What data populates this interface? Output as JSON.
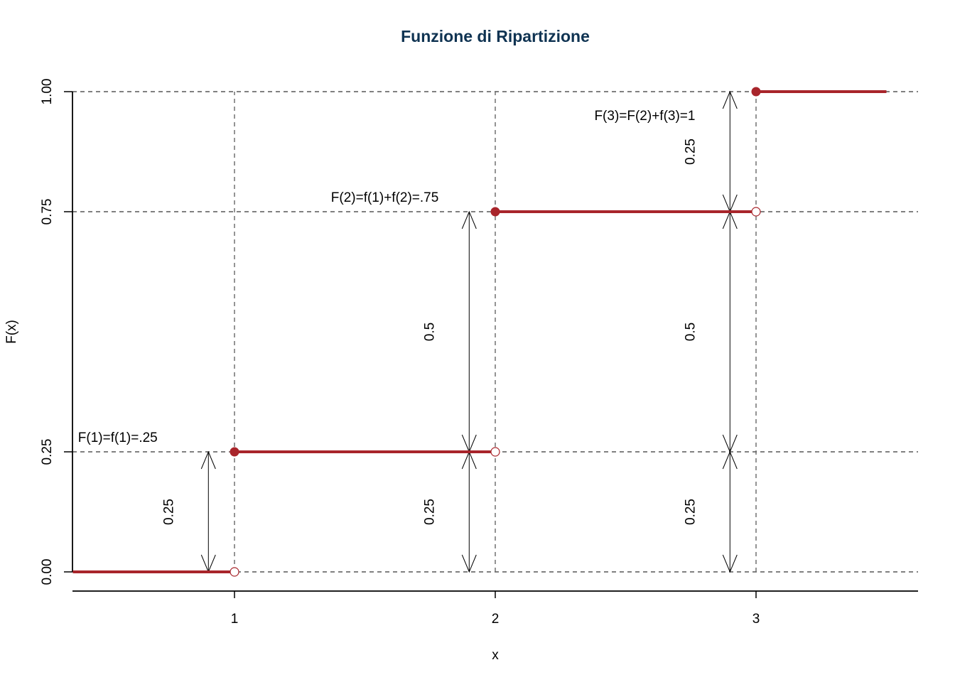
{
  "chart_data": {
    "type": "step",
    "title": "Funzione di Ripartizione",
    "xlabel": "x",
    "ylabel": "F(x)",
    "xlim": [
      0.38,
      3.62
    ],
    "ylim": [
      -0.08,
      1.0
    ],
    "x_ticks": [
      1,
      2,
      3
    ],
    "x_tick_labels": [
      "1",
      "2",
      "3"
    ],
    "y_ticks": [
      0,
      0.25,
      0.75,
      1
    ],
    "y_tick_labels": [
      "0.00",
      "0.25",
      "0.75",
      "1.00"
    ],
    "step_color": "#a8252b",
    "title_color": "#0f3352",
    "segments": [
      {
        "x_start": 0.38,
        "x_end": 1,
        "y": 0
      },
      {
        "x_start": 1,
        "x_end": 2,
        "y": 0.25
      },
      {
        "x_start": 2,
        "x_end": 3,
        "y": 0.75
      },
      {
        "x_start": 3,
        "x_end": 3.5,
        "y": 1
      }
    ],
    "closed_points": [
      {
        "x": 1,
        "y": 0.25
      },
      {
        "x": 2,
        "y": 0.75
      },
      {
        "x": 3,
        "y": 1
      }
    ],
    "open_points": [
      {
        "x": 1,
        "y": 0
      },
      {
        "x": 2,
        "y": 0.25
      },
      {
        "x": 3,
        "y": 0.75
      }
    ],
    "reference_lines_h": [
      0,
      0.25,
      0.75,
      1
    ],
    "reference_lines_v": [
      1,
      2,
      3
    ],
    "arrows": [
      {
        "x": 0.9,
        "y0": 0,
        "y1": 0.25,
        "label": "0.25"
      },
      {
        "x": 1.9,
        "y0": 0,
        "y1": 0.25,
        "label": "0.25"
      },
      {
        "x": 1.9,
        "y0": 0.25,
        "y1": 0.75,
        "label": "0.5"
      },
      {
        "x": 2.9,
        "y0": 0,
        "y1": 0.25,
        "label": "0.25"
      },
      {
        "x": 2.9,
        "y0": 0.25,
        "y1": 0.75,
        "label": "0.5"
      },
      {
        "x": 2.9,
        "y0": 0.75,
        "y1": 1,
        "label": "0.25"
      }
    ],
    "annotations": [
      {
        "x": 0.4,
        "y": 0.25,
        "text": "F(1)=f(1)=.25"
      },
      {
        "x": 1.37,
        "y": 0.75,
        "text": "F(2)=f(1)+f(2)=.75"
      },
      {
        "x": 2.38,
        "y": 1.0,
        "text": "F(3)=F(2)+f(3)=1"
      }
    ]
  }
}
